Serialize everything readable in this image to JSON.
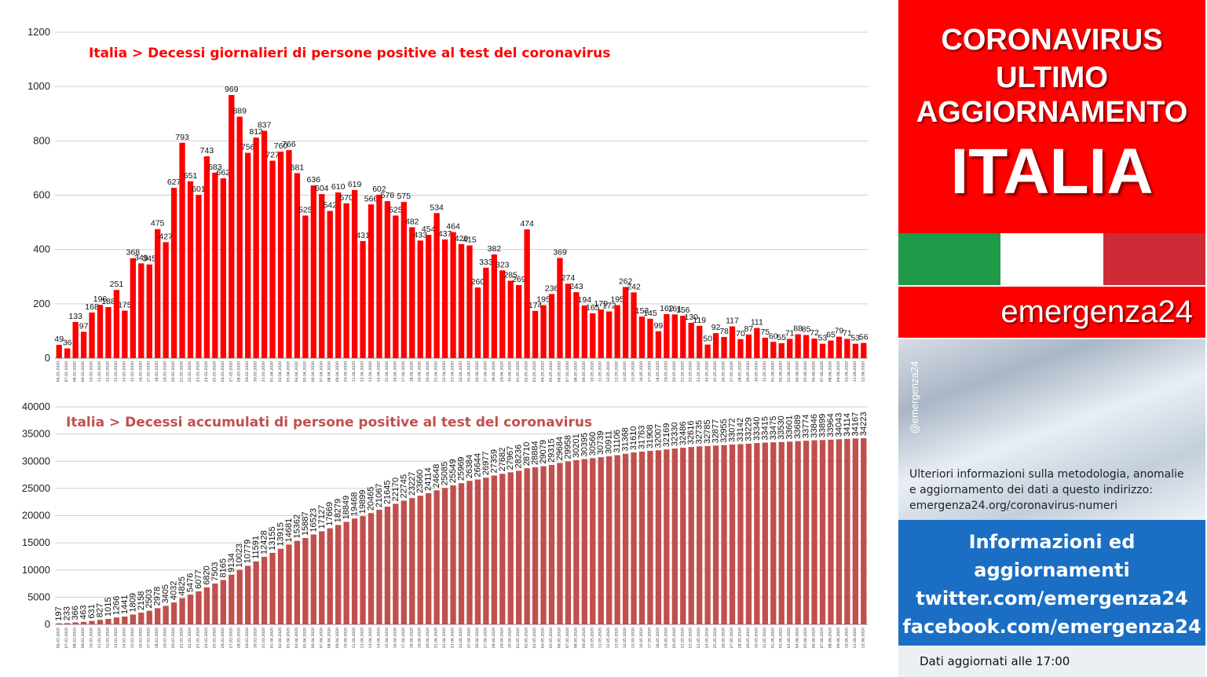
{
  "chart_data": [
    {
      "type": "bar",
      "title": "Italia > Decessi giornalieri di persone positive al test del coronavirus",
      "ylim": [
        0,
        1200
      ],
      "yticks": [
        0,
        200,
        400,
        600,
        800,
        1000,
        1200
      ],
      "grid": true,
      "color": "#ff0000",
      "categories": [
        "06.03.2020",
        "07.03.2020",
        "08.03.2020",
        "09.03.2020",
        "10.03.2020",
        "11.03.2020",
        "12.03.2020",
        "13.03.2020",
        "14.03.2020",
        "15.03.2020",
        "16.03.2020",
        "17.03.2020",
        "18.03.2020",
        "19.03.2020",
        "20.03.2020",
        "21.03.2020",
        "22.03.2020",
        "23.03.2020",
        "24.03.2020",
        "25.03.2020",
        "26.03.2020",
        "27.03.2020",
        "28.03.2020",
        "29.03.2020",
        "30.03.2020",
        "31.03.2020",
        "01.04.2020",
        "02.04.2020",
        "03.04.2020",
        "04.04.2020",
        "05.04.2020",
        "06.04.2020",
        "07.04.2020",
        "08.04.2020",
        "09.04.2020",
        "10.04.2020",
        "11.04.2020",
        "12.04.2020",
        "13.04.2020",
        "14.04.2020",
        "15.04.2020",
        "16.04.2020",
        "17.04.2020",
        "18.04.2020",
        "19.04.2020",
        "20.04.2020",
        "21.04.2020",
        "22.04.2020",
        "23.04.2020",
        "24.04.2020",
        "25.04.2020",
        "26.04.2020",
        "27.04.2020",
        "28.04.2020",
        "29.04.2020",
        "30.04.2020",
        "01.05.2020",
        "02.05.2020",
        "03.05.2020",
        "04.05.2020",
        "05.05.2020",
        "06.05.2020",
        "07.05.2020",
        "08.05.2020",
        "09.05.2020",
        "10.05.2020",
        "11.05.2020",
        "12.05.2020",
        "13.05.2020",
        "14.05.2020",
        "15.05.2020",
        "16.05.2020",
        "17.05.2020",
        "18.05.2020",
        "19.05.2020",
        "20.05.2020",
        "21.05.2020",
        "22.05.2020",
        "23.05.2020",
        "24.05.2020",
        "25.05.2020",
        "26.05.2020",
        "27.05.2020",
        "28.05.2020",
        "29.05.2020",
        "30.05.2020",
        "31.05.2020",
        "01.06.2020",
        "02.06.2020",
        "03.06.2020",
        "04.06.2020",
        "05.06.2020",
        "06.06.2020",
        "07.06.2020",
        "08.06.2020",
        "09.06.2020",
        "10.06.2020",
        "11.06.2020",
        "12.06.2020"
      ],
      "values": [
        49,
        36,
        133,
        97,
        168,
        196,
        188,
        251,
        175,
        368,
        349,
        345,
        475,
        427,
        627,
        793,
        651,
        601,
        743,
        683,
        662,
        969,
        889,
        756,
        812,
        837,
        727,
        760,
        766,
        681,
        525,
        636,
        604,
        542,
        610,
        570,
        619,
        431,
        566,
        602,
        578,
        525,
        575,
        482,
        433,
        454,
        534,
        437,
        464,
        420,
        415,
        260,
        333,
        382,
        323,
        285,
        269,
        474,
        174,
        195,
        236,
        369,
        274,
        243,
        194,
        165,
        179,
        172,
        195,
        262,
        242,
        153,
        145,
        99,
        162,
        161,
        156,
        130,
        119,
        50,
        92,
        78,
        117,
        70,
        87,
        111,
        75,
        60,
        55,
        71,
        88,
        85,
        72,
        53,
        65,
        79,
        71,
        53,
        56
      ]
    },
    {
      "type": "bar",
      "title": "Italia > Decessi accumulati di persone positive al test del coronavirus",
      "ylim": [
        0,
        40000
      ],
      "yticks": [
        0,
        5000,
        10000,
        15000,
        20000,
        25000,
        30000,
        35000,
        40000
      ],
      "grid": true,
      "color": "#c0504d",
      "categories": [
        "06.03.2020",
        "07.03.2020",
        "08.03.2020",
        "09.03.2020",
        "10.03.2020",
        "11.03.2020",
        "12.03.2020",
        "13.03.2020",
        "14.03.2020",
        "15.03.2020",
        "16.03.2020",
        "17.03.2020",
        "18.03.2020",
        "19.03.2020",
        "20.03.2020",
        "21.03.2020",
        "22.03.2020",
        "23.03.2020",
        "24.03.2020",
        "25.03.2020",
        "26.03.2020",
        "27.03.2020",
        "28.03.2020",
        "29.03.2020",
        "30.03.2020",
        "31.03.2020",
        "01.04.2020",
        "02.04.2020",
        "03.04.2020",
        "04.04.2020",
        "05.04.2020",
        "06.04.2020",
        "07.04.2020",
        "08.04.2020",
        "09.04.2020",
        "10.04.2020",
        "11.04.2020",
        "12.04.2020",
        "13.04.2020",
        "14.04.2020",
        "15.04.2020",
        "16.04.2020",
        "17.04.2020",
        "18.04.2020",
        "19.04.2020",
        "20.04.2020",
        "21.04.2020",
        "22.04.2020",
        "23.04.2020",
        "24.04.2020",
        "25.04.2020",
        "26.04.2020",
        "27.04.2020",
        "28.04.2020",
        "29.04.2020",
        "30.04.2020",
        "01.05.2020",
        "02.05.2020",
        "03.05.2020",
        "04.05.2020",
        "05.05.2020",
        "06.05.2020",
        "07.05.2020",
        "08.05.2020",
        "09.05.2020",
        "10.05.2020",
        "11.05.2020",
        "12.05.2020",
        "13.05.2020",
        "14.05.2020",
        "15.05.2020",
        "16.05.2020",
        "17.05.2020",
        "18.05.2020",
        "19.05.2020",
        "20.05.2020",
        "21.05.2020",
        "22.05.2020",
        "23.05.2020",
        "24.05.2020",
        "25.05.2020",
        "26.05.2020",
        "27.05.2020",
        "28.05.2020",
        "29.05.2020",
        "30.05.2020",
        "31.05.2020",
        "01.06.2020",
        "02.06.2020",
        "03.06.2020",
        "04.06.2020",
        "05.06.2020",
        "06.06.2020",
        "07.06.2020",
        "08.06.2020",
        "09.06.2020",
        "10.06.2020",
        "11.06.2020",
        "12.06.2020"
      ],
      "values": [
        197,
        233,
        366,
        463,
        631,
        827,
        1015,
        1266,
        1441,
        1809,
        2158,
        2503,
        2978,
        3405,
        4032,
        4825,
        5476,
        6077,
        6820,
        7503,
        8165,
        9134,
        10023,
        10779,
        11591,
        12428,
        13155,
        13915,
        14681,
        15362,
        15887,
        16523,
        17127,
        17669,
        18279,
        18849,
        19468,
        19899,
        20465,
        21067,
        21645,
        22170,
        22745,
        23227,
        23660,
        24114,
        24648,
        25085,
        25549,
        25969,
        26384,
        26644,
        26977,
        27359,
        27682,
        27967,
        28236,
        28710,
        28884,
        29079,
        29315,
        29684,
        29958,
        30201,
        30395,
        30560,
        30739,
        30911,
        31106,
        31368,
        31610,
        31763,
        31908,
        32007,
        32169,
        32330,
        32486,
        32616,
        32735,
        32785,
        32877,
        32955,
        33072,
        33142,
        33229,
        33340,
        33415,
        33475,
        33530,
        33601,
        33689,
        33774,
        33846,
        33899,
        33964,
        34043,
        34114,
        34167,
        34223
      ]
    }
  ],
  "panel": {
    "header_lines": [
      "CORONAVIRUS",
      "ULTIMO",
      "AGGIORNAMENTO"
    ],
    "country": "ITALIA",
    "flag_colors": [
      "#1e9a49",
      "#ffffff",
      "#cf2b37"
    ],
    "brand": "emergenza24",
    "handle": "@emergenza24",
    "info_lines": [
      "Ulteriori informazioni sulla metodologia, anomalie",
      "e aggiornamento dei dati a questo indirizzo:",
      "emergenza24.org/coronavirus-numeri"
    ],
    "blue_lines": [
      "Informazioni ed",
      "aggiornamenti",
      "twitter.com/emergenza24",
      "facebook.com/emergenza24"
    ],
    "footer": "Dati aggiornati alle 17:00"
  }
}
